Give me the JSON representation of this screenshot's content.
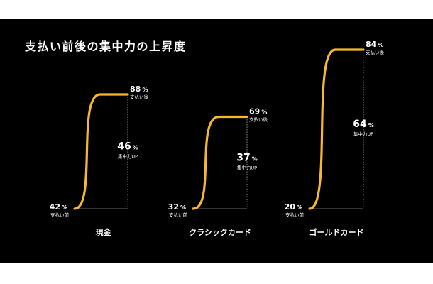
{
  "chart_data": {
    "type": "line",
    "title": "支払い前後の集中力の上昇度",
    "unit": "%",
    "before_label": "支払い前",
    "after_label": "支払い後",
    "gain_label": "集中力UP",
    "colors": {
      "curve": "#f7b82b",
      "background": "#000000",
      "text": "#ffffff"
    },
    "ylim": [
      0,
      100
    ],
    "series": [
      {
        "category": "現金",
        "before": 42,
        "after": 88,
        "increase": 46
      },
      {
        "category": "クラシックカード",
        "before": 32,
        "after": 69,
        "increase": 37
      },
      {
        "category": "ゴールドカード",
        "before": 20,
        "after": 84,
        "increase": 64
      }
    ]
  }
}
